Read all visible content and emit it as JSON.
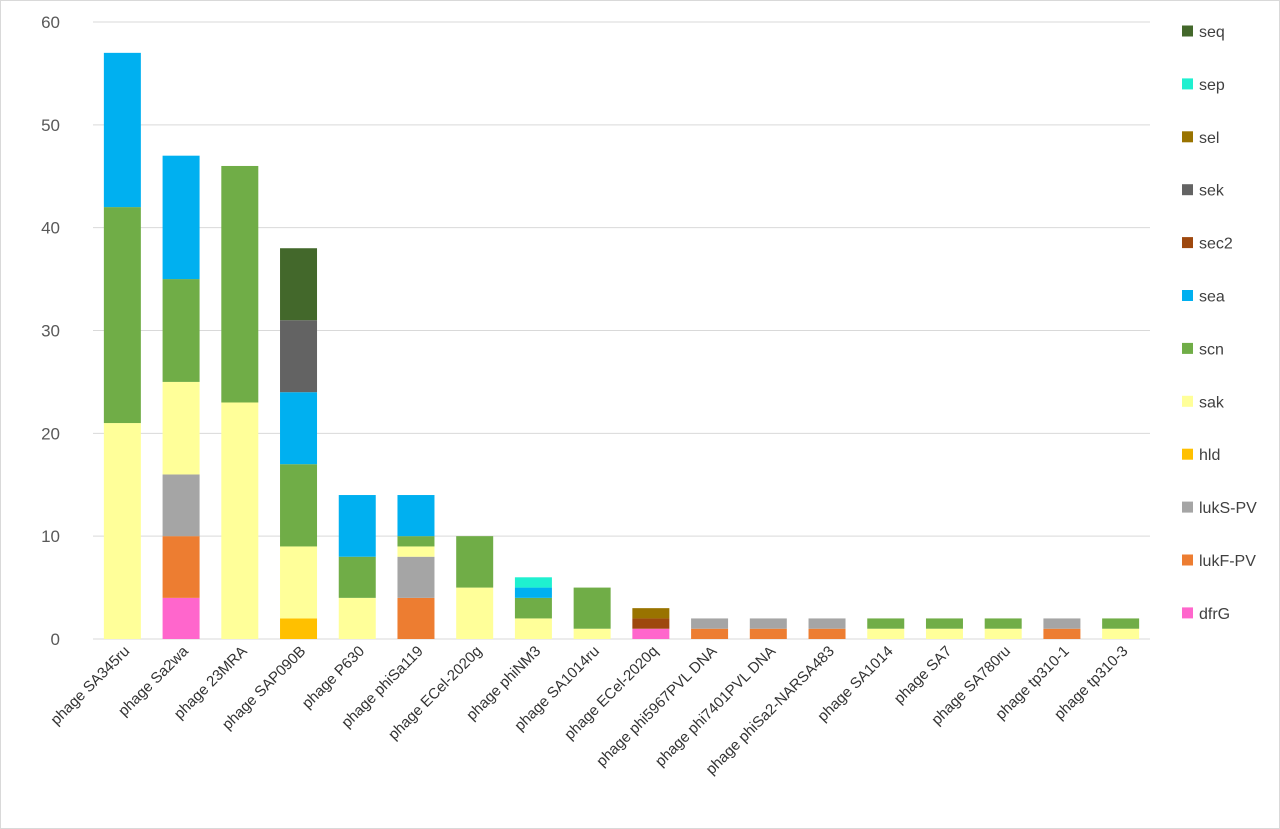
{
  "chart_data": {
    "type": "bar",
    "stacked": true,
    "grid": true,
    "legend_placement": "right",
    "ylim": [
      0,
      60
    ],
    "yticks": [
      0,
      10,
      20,
      30,
      40,
      50,
      60
    ],
    "categories": [
      "phage SA345ru",
      "phage Sa2wa",
      "phage 23MRA",
      "phage SAP090B",
      "phage P630",
      "phage phiSa119",
      "phage ECel-2020g",
      "phage phiNM3",
      "phage SA1014ru",
      "phage ECel-2020q",
      "phage phi5967PVL DNA",
      "phage phi7401PVL DNA",
      "phage phiSa2-NARSA483",
      "phage SA1014",
      "phage SA7",
      "phage SA780ru",
      "phage tp310-1",
      "phage tp310-3"
    ],
    "series": [
      {
        "name": "dfrG",
        "color": "#FF66CC",
        "values": [
          0,
          4,
          0,
          0,
          0,
          0,
          0,
          0,
          0,
          1,
          0,
          0,
          0,
          0,
          0,
          0,
          0,
          0
        ]
      },
      {
        "name": "lukF-PV",
        "color": "#ED7D31",
        "values": [
          0,
          6,
          0,
          0,
          0,
          4,
          0,
          0,
          0,
          0,
          1,
          1,
          1,
          0,
          0,
          0,
          1,
          0
        ]
      },
      {
        "name": "lukS-PV",
        "color": "#A5A5A5",
        "values": [
          0,
          6,
          0,
          0,
          0,
          4,
          0,
          0,
          0,
          0,
          1,
          1,
          1,
          0,
          0,
          0,
          1,
          0
        ]
      },
      {
        "name": "hld",
        "color": "#FFC000",
        "values": [
          0,
          0,
          0,
          2,
          0,
          0,
          0,
          0,
          0,
          0,
          0,
          0,
          0,
          0,
          0,
          0,
          0,
          0
        ]
      },
      {
        "name": "sak",
        "color": "#FFFF99",
        "values": [
          21,
          9,
          23,
          7,
          4,
          1,
          5,
          2,
          1,
          0,
          0,
          0,
          0,
          1,
          1,
          1,
          0,
          1
        ]
      },
      {
        "name": "scn",
        "color": "#70AD47",
        "values": [
          21,
          10,
          23,
          8,
          4,
          1,
          5,
          2,
          4,
          0,
          0,
          0,
          0,
          1,
          1,
          1,
          0,
          1
        ]
      },
      {
        "name": "sea",
        "color": "#00B0F0",
        "values": [
          15,
          12,
          0,
          7,
          6,
          4,
          0,
          1,
          0,
          0,
          0,
          0,
          0,
          0,
          0,
          0,
          0,
          0
        ]
      },
      {
        "name": "sec2",
        "color": "#9E480E",
        "values": [
          0,
          0,
          0,
          0,
          0,
          0,
          0,
          0,
          0,
          1,
          0,
          0,
          0,
          0,
          0,
          0,
          0,
          0
        ]
      },
      {
        "name": "sek",
        "color": "#636363",
        "values": [
          0,
          0,
          0,
          7,
          0,
          0,
          0,
          0,
          0,
          0,
          0,
          0,
          0,
          0,
          0,
          0,
          0,
          0
        ]
      },
      {
        "name": "sel",
        "color": "#997300",
        "values": [
          0,
          0,
          0,
          0,
          0,
          0,
          0,
          0,
          0,
          1,
          0,
          0,
          0,
          0,
          0,
          0,
          0,
          0
        ]
      },
      {
        "name": "sep",
        "color": "#1FF0D0",
        "values": [
          0,
          0,
          0,
          0,
          0,
          0,
          0,
          1,
          0,
          0,
          0,
          0,
          0,
          0,
          0,
          0,
          0,
          0
        ]
      },
      {
        "name": "seq",
        "color": "#43682B",
        "values": [
          0,
          0,
          0,
          7,
          0,
          0,
          0,
          0,
          0,
          0,
          0,
          0,
          0,
          0,
          0,
          0,
          0,
          0
        ]
      }
    ]
  }
}
